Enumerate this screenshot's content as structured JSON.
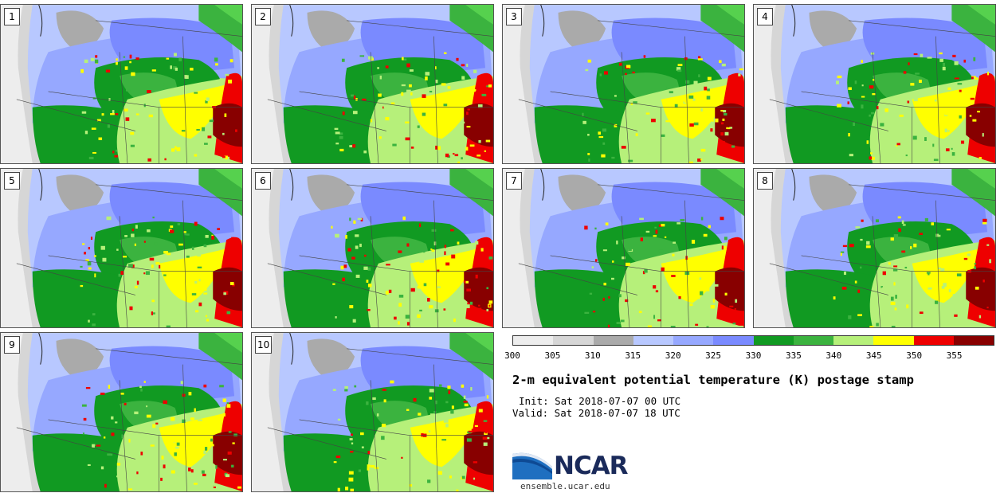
{
  "panels": [
    {
      "label": "1"
    },
    {
      "label": "2"
    },
    {
      "label": "3"
    },
    {
      "label": "4"
    },
    {
      "label": "5"
    },
    {
      "label": "6"
    },
    {
      "label": "7"
    },
    {
      "label": "8"
    },
    {
      "label": "9"
    },
    {
      "label": "10"
    }
  ],
  "colorbar": {
    "colors": [
      "#ededed",
      "#d6d6d6",
      "#aaaaaa",
      "#b8c8ff",
      "#96a8ff",
      "#7a8aff",
      "#119a22",
      "#3bb33f",
      "#b6f07a",
      "#ffff00",
      "#ee0000",
      "#880000"
    ],
    "ticks": [
      "300",
      "305",
      "310",
      "315",
      "320",
      "325",
      "330",
      "335",
      "340",
      "345",
      "350",
      "355"
    ]
  },
  "title": "2-m equivalent potential temperature (K) postage stamp",
  "init": "Init: Sat 2018-07-07 00 UTC",
  "valid": "Valid: Sat 2018-07-07 18 UTC",
  "logo": {
    "text": "NCAR",
    "url": "ensemble.ucar.edu"
  }
}
